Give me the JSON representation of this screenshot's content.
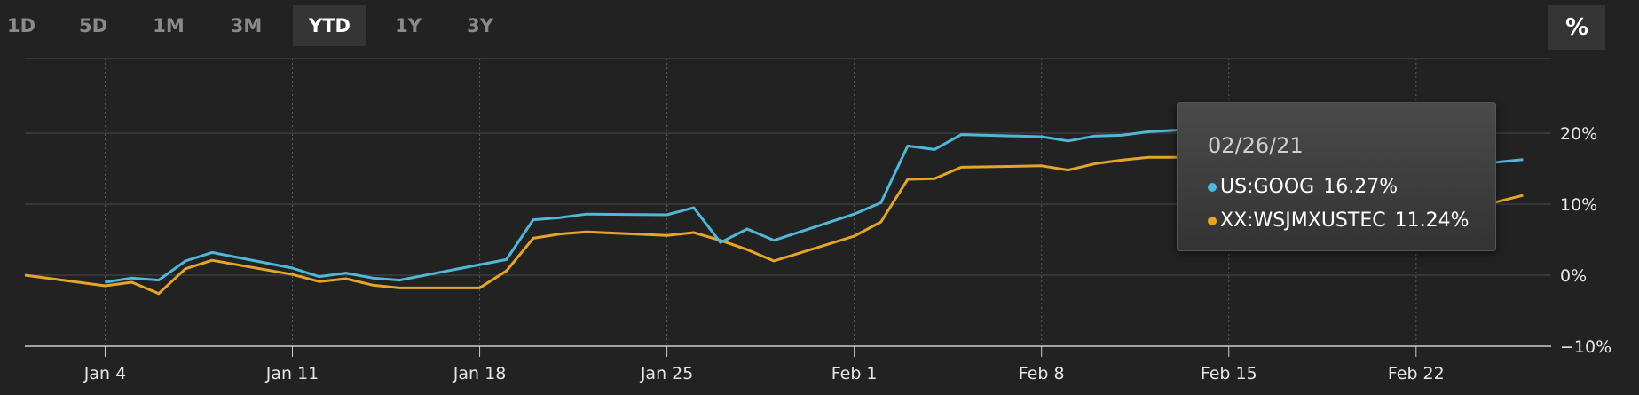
{
  "range_selector": {
    "buttons": [
      {
        "label": "1D",
        "active": false
      },
      {
        "label": "5D",
        "active": false
      },
      {
        "label": "1M",
        "active": false
      },
      {
        "label": "3M",
        "active": false
      },
      {
        "label": "YTD",
        "active": true
      },
      {
        "label": "1Y",
        "active": false
      },
      {
        "label": "3Y",
        "active": false
      }
    ],
    "percent_toggle_label": "%"
  },
  "tooltip": {
    "date": "02/26/21",
    "rows": [
      {
        "name": "US:GOOG",
        "value": "16.27%",
        "color": "#4fb8d8"
      },
      {
        "name": "XX:WSJMXUSTEC",
        "value": "11.24%",
        "color": "#e6a52a"
      }
    ]
  },
  "chart_data": {
    "type": "line",
    "x_tick_labels": [
      "Jan 4",
      "Jan 11",
      "Jan 18",
      "Jan 25",
      "Feb 1",
      "Feb 8",
      "Feb 15",
      "Feb 22"
    ],
    "x_tick_days": [
      4,
      11,
      18,
      25,
      32,
      39,
      46,
      53
    ],
    "y_tick_labels": [
      "20%",
      "10%",
      "0%",
      "−10%"
    ],
    "y_ticks": [
      20,
      10,
      0,
      -10
    ],
    "ylim": [
      -10,
      30
    ],
    "grid": true,
    "series": [
      {
        "name": "US:GOOG",
        "color": "#4fb8d8",
        "points": [
          [
            4,
            -1.0
          ],
          [
            5,
            -0.4
          ],
          [
            6,
            -0.7
          ],
          [
            7,
            2.0
          ],
          [
            8,
            3.2
          ],
          [
            11,
            1.0
          ],
          [
            12,
            -0.2
          ],
          [
            13,
            0.3
          ],
          [
            14,
            -0.4
          ],
          [
            15,
            -0.7
          ],
          [
            19,
            2.2
          ],
          [
            20,
            7.8
          ],
          [
            21,
            8.1
          ],
          [
            22,
            8.6
          ],
          [
            25,
            8.5
          ],
          [
            26,
            9.5
          ],
          [
            27,
            4.6
          ],
          [
            28,
            6.5
          ],
          [
            29,
            4.9
          ],
          [
            32,
            8.6
          ],
          [
            33,
            10.2
          ],
          [
            34,
            18.2
          ],
          [
            35,
            17.7
          ],
          [
            36,
            19.8
          ],
          [
            39,
            19.5
          ],
          [
            40,
            18.9
          ],
          [
            41,
            19.6
          ],
          [
            42,
            19.7
          ],
          [
            43,
            20.2
          ],
          [
            44,
            20.4
          ],
          [
            45,
            20.7
          ],
          [
            56,
            15.9
          ],
          [
            57,
            16.27
          ]
        ]
      },
      {
        "name": "XX:WSJMXUSTEC",
        "color": "#e6a52a",
        "points": [
          [
            1,
            0.0
          ],
          [
            4,
            -1.5
          ],
          [
            5,
            -1.0
          ],
          [
            6,
            -2.6
          ],
          [
            7,
            0.9
          ],
          [
            8,
            2.1
          ],
          [
            11,
            0.1
          ],
          [
            12,
            -0.9
          ],
          [
            13,
            -0.5
          ],
          [
            14,
            -1.4
          ],
          [
            15,
            -1.8
          ],
          [
            18,
            -1.8
          ],
          [
            19,
            0.6
          ],
          [
            20,
            5.2
          ],
          [
            21,
            5.8
          ],
          [
            22,
            6.1
          ],
          [
            25,
            5.6
          ],
          [
            26,
            6.0
          ],
          [
            27,
            4.9
          ],
          [
            28,
            3.6
          ],
          [
            29,
            2.0
          ],
          [
            32,
            5.5
          ],
          [
            33,
            7.5
          ],
          [
            34,
            13.5
          ],
          [
            35,
            13.6
          ],
          [
            36,
            15.2
          ],
          [
            39,
            15.4
          ],
          [
            40,
            14.8
          ],
          [
            41,
            15.7
          ],
          [
            42,
            16.2
          ],
          [
            43,
            16.6
          ],
          [
            45,
            16.6
          ],
          [
            56,
            10.3
          ],
          [
            57,
            11.24
          ]
        ]
      }
    ]
  }
}
